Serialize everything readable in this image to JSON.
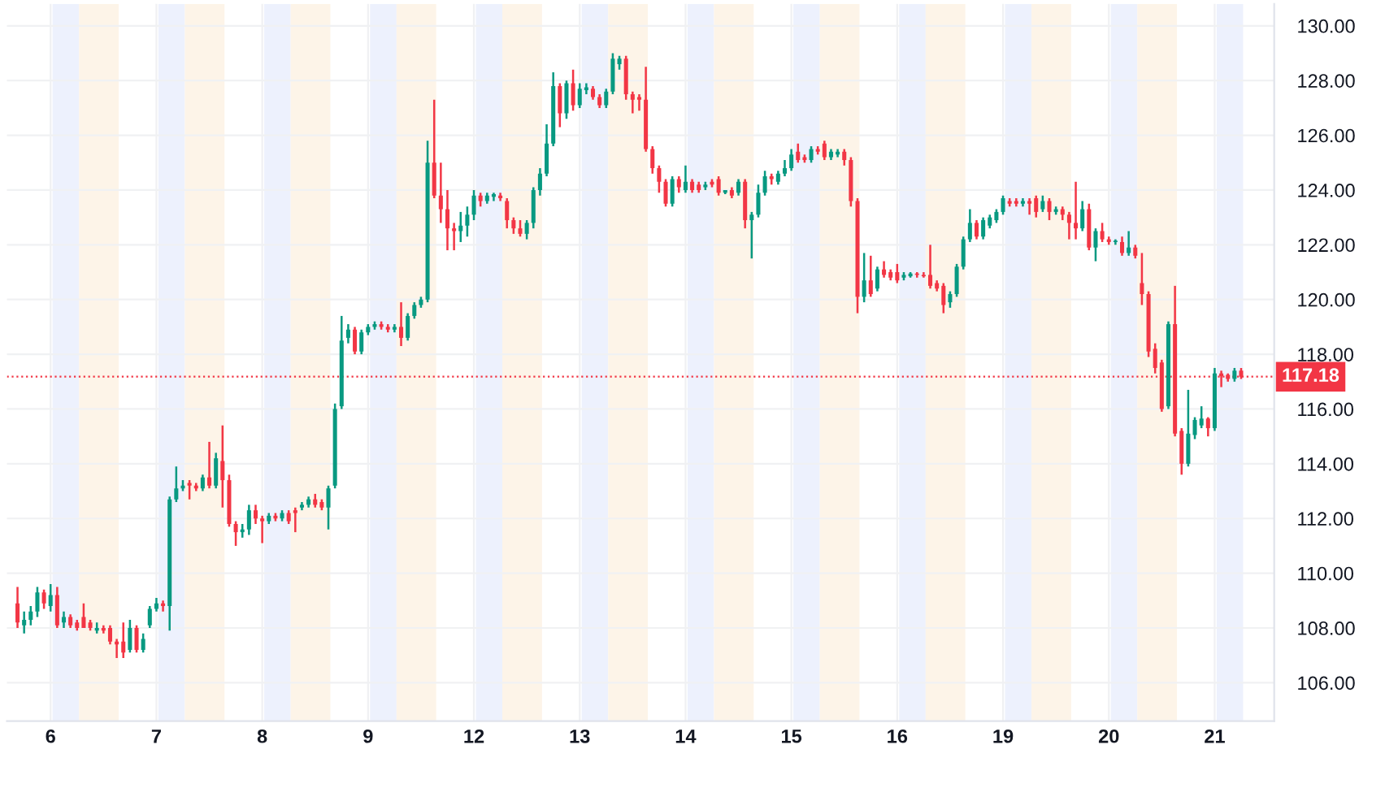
{
  "chart_data": {
    "type": "candlestick",
    "categories": [
      null,
      null,
      null,
      null,
      null,
      "6",
      null,
      null,
      null,
      null,
      null,
      null,
      null,
      null,
      null,
      null,
      null,
      null,
      null,
      null,
      null,
      "7",
      null,
      null,
      null,
      null,
      null,
      null,
      null,
      null,
      null,
      null,
      null,
      null,
      null,
      null,
      null,
      "8",
      null,
      null,
      null,
      null,
      null,
      null,
      null,
      null,
      null,
      null,
      null,
      null,
      null,
      null,
      null,
      "9",
      null,
      null,
      null,
      null,
      null,
      null,
      null,
      null,
      null,
      null,
      null,
      null,
      null,
      null,
      null,
      "12",
      null,
      null,
      null,
      null,
      null,
      null,
      null,
      null,
      null,
      null,
      null,
      null,
      null,
      null,
      null,
      "13",
      null,
      null,
      null,
      null,
      null,
      null,
      null,
      null,
      null,
      null,
      null,
      null,
      null,
      null,
      null,
      "14",
      null,
      null,
      null,
      null,
      null,
      null,
      null,
      null,
      null,
      null,
      null,
      null,
      null,
      null,
      null,
      "15",
      null,
      null,
      null,
      null,
      null,
      null,
      null,
      null,
      null,
      null,
      null,
      null,
      null,
      null,
      null,
      "16",
      null,
      null,
      null,
      null,
      null,
      null,
      null,
      null,
      null,
      null,
      null,
      null,
      null,
      null,
      null,
      "19",
      null,
      null,
      null,
      null,
      null,
      null,
      null,
      null,
      null,
      null,
      null,
      null,
      null,
      null,
      null,
      "20",
      null,
      null,
      null,
      null,
      null,
      null,
      null,
      null,
      null,
      null,
      null,
      null,
      null,
      null,
      null,
      "21",
      null,
      null,
      null,
      null
    ],
    "ohlc": [
      [
        108.9,
        109.5,
        108.0,
        108.2
      ],
      [
        108.1,
        108.6,
        107.8,
        108.3
      ],
      [
        108.3,
        108.8,
        108.1,
        108.6
      ],
      [
        108.6,
        109.5,
        108.4,
        109.3
      ],
      [
        109.3,
        109.4,
        108.7,
        108.9
      ],
      [
        108.8,
        109.6,
        108.6,
        109.2
      ],
      [
        109.2,
        109.5,
        108.0,
        108.1
      ],
      [
        108.2,
        108.6,
        108.0,
        108.4
      ],
      [
        108.4,
        108.5,
        108.0,
        108.1
      ],
      [
        108.2,
        108.3,
        107.9,
        108.0
      ],
      [
        108.4,
        108.9,
        108.0,
        108.0
      ],
      [
        108.2,
        108.3,
        107.9,
        108.0
      ],
      [
        107.9,
        108.2,
        107.8,
        108.0
      ],
      [
        108.0,
        108.1,
        107.8,
        107.9
      ],
      [
        108.0,
        108.1,
        107.4,
        107.5
      ],
      [
        107.5,
        107.6,
        106.9,
        107.4
      ],
      [
        107.5,
        108.2,
        106.9,
        107.1
      ],
      [
        107.2,
        108.3,
        107.1,
        108.0
      ],
      [
        108.0,
        108.1,
        107.1,
        107.2
      ],
      [
        107.2,
        107.8,
        107.1,
        107.6
      ],
      [
        108.1,
        108.8,
        108.0,
        108.7
      ],
      [
        108.7,
        109.1,
        108.6,
        108.9
      ],
      [
        108.9,
        109.0,
        108.6,
        108.8
      ],
      [
        108.8,
        112.8,
        107.9,
        112.7
      ],
      [
        112.7,
        113.9,
        112.6,
        113.1
      ],
      [
        113.1,
        113.4,
        113.0,
        113.2
      ],
      [
        113.3,
        113.4,
        112.7,
        113.2
      ],
      [
        113.2,
        113.3,
        113.0,
        113.1
      ],
      [
        113.1,
        113.6,
        113.0,
        113.5
      ],
      [
        113.5,
        114.8,
        113.1,
        113.2
      ],
      [
        113.2,
        114.4,
        113.1,
        114.2
      ],
      [
        114.1,
        115.4,
        112.4,
        113.4
      ],
      [
        113.4,
        113.6,
        111.7,
        111.8
      ],
      [
        111.8,
        111.9,
        111.0,
        111.5
      ],
      [
        111.5,
        111.8,
        111.3,
        111.6
      ],
      [
        111.6,
        112.5,
        111.4,
        112.3
      ],
      [
        112.3,
        112.5,
        111.8,
        112.0
      ],
      [
        112.0,
        112.1,
        111.1,
        111.9
      ],
      [
        111.9,
        112.2,
        111.8,
        112.1
      ],
      [
        112.1,
        112.2,
        111.9,
        112.0
      ],
      [
        112.0,
        112.3,
        111.9,
        112.2
      ],
      [
        112.2,
        112.3,
        111.8,
        111.9
      ],
      [
        112.3,
        112.4,
        111.5,
        112.2
      ],
      [
        112.4,
        112.6,
        112.3,
        112.5
      ],
      [
        112.5,
        112.8,
        112.4,
        112.7
      ],
      [
        112.7,
        112.9,
        112.4,
        112.5
      ],
      [
        112.6,
        112.7,
        112.3,
        112.4
      ],
      [
        112.4,
        113.2,
        111.6,
        113.1
      ],
      [
        113.2,
        116.2,
        113.1,
        116.0
      ],
      [
        116.1,
        119.4,
        116.0,
        118.5
      ],
      [
        118.6,
        119.1,
        118.4,
        118.9
      ],
      [
        118.9,
        119.0,
        118.0,
        118.1
      ],
      [
        118.1,
        118.9,
        118.0,
        118.8
      ],
      [
        118.8,
        119.1,
        118.7,
        119.0
      ],
      [
        119.0,
        119.2,
        118.9,
        119.1
      ],
      [
        119.1,
        119.2,
        118.9,
        119.0
      ],
      [
        119.0,
        119.1,
        118.8,
        118.9
      ],
      [
        118.9,
        119.1,
        118.8,
        119.0
      ],
      [
        119.0,
        119.9,
        118.3,
        118.6
      ],
      [
        118.6,
        119.5,
        118.5,
        119.4
      ],
      [
        119.4,
        119.9,
        119.3,
        119.8
      ],
      [
        119.8,
        120.1,
        119.7,
        120.0
      ],
      [
        120.0,
        125.8,
        119.9,
        125.0
      ],
      [
        125.0,
        127.3,
        123.7,
        123.8
      ],
      [
        123.8,
        125.0,
        122.8,
        123.3
      ],
      [
        123.3,
        124.0,
        121.8,
        122.6
      ],
      [
        122.6,
        122.8,
        121.8,
        122.5
      ],
      [
        122.5,
        123.2,
        122.1,
        122.7
      ],
      [
        122.7,
        123.4,
        122.3,
        123.1
      ],
      [
        123.1,
        124.0,
        122.9,
        123.8
      ],
      [
        123.8,
        123.9,
        123.4,
        123.6
      ],
      [
        123.6,
        123.9,
        123.5,
        123.8
      ],
      [
        123.75,
        123.9,
        123.6,
        123.85
      ],
      [
        123.8,
        123.9,
        123.6,
        123.7
      ],
      [
        123.6,
        123.7,
        122.6,
        122.9
      ],
      [
        122.9,
        123.0,
        122.4,
        122.6
      ],
      [
        122.6,
        122.9,
        122.3,
        122.4
      ],
      [
        122.4,
        122.9,
        122.2,
        122.8
      ],
      [
        122.8,
        124.1,
        122.6,
        124.0
      ],
      [
        124.0,
        124.8,
        123.8,
        124.6
      ],
      [
        124.6,
        126.4,
        124.5,
        125.7
      ],
      [
        125.7,
        128.3,
        125.6,
        127.8
      ],
      [
        127.8,
        127.9,
        126.3,
        126.8
      ],
      [
        126.8,
        128.0,
        126.6,
        127.9
      ],
      [
        127.9,
        128.4,
        126.9,
        127.1
      ],
      [
        127.1,
        127.9,
        127.0,
        127.7
      ],
      [
        127.65,
        127.9,
        127.5,
        127.75
      ],
      [
        127.7,
        127.8,
        127.3,
        127.4
      ],
      [
        127.4,
        127.5,
        127.0,
        127.1
      ],
      [
        127.1,
        127.7,
        127.0,
        127.6
      ],
      [
        127.6,
        129.0,
        127.5,
        128.8
      ],
      [
        128.6,
        128.9,
        128.4,
        128.8
      ],
      [
        128.8,
        128.9,
        127.3,
        127.5
      ],
      [
        127.5,
        127.6,
        126.8,
        127.3
      ],
      [
        127.4,
        127.5,
        126.9,
        127.3
      ],
      [
        127.3,
        128.5,
        125.4,
        125.5
      ],
      [
        125.5,
        125.6,
        124.6,
        124.8
      ],
      [
        124.8,
        124.9,
        123.9,
        124.3
      ],
      [
        124.3,
        124.4,
        123.4,
        123.5
      ],
      [
        123.5,
        124.5,
        123.4,
        124.4
      ],
      [
        124.4,
        124.5,
        123.9,
        124.1
      ],
      [
        124.0,
        124.9,
        123.9,
        124.3
      ],
      [
        124.3,
        124.4,
        123.9,
        124.0
      ],
      [
        124.2,
        124.3,
        123.9,
        124.0
      ],
      [
        124.1,
        124.3,
        124.0,
        124.2
      ],
      [
        124.3,
        124.4,
        124.1,
        124.2
      ],
      [
        124.4,
        124.5,
        123.8,
        123.9
      ],
      [
        123.9,
        124.0,
        123.85,
        124.0
      ],
      [
        124.0,
        124.1,
        123.7,
        123.8
      ],
      [
        123.9,
        124.4,
        123.8,
        124.3
      ],
      [
        124.3,
        124.4,
        122.6,
        122.9
      ],
      [
        122.9,
        123.2,
        121.5,
        123.1
      ],
      [
        123.1,
        124.2,
        123.0,
        123.9
      ],
      [
        123.9,
        124.7,
        123.8,
        124.5
      ],
      [
        124.5,
        124.6,
        124.2,
        124.4
      ],
      [
        124.3,
        124.7,
        124.2,
        124.6
      ],
      [
        124.6,
        125.1,
        124.5,
        124.8
      ],
      [
        124.8,
        125.5,
        124.7,
        125.3
      ],
      [
        125.4,
        125.7,
        125.0,
        125.1
      ],
      [
        125.2,
        125.3,
        125.0,
        125.1
      ],
      [
        125.1,
        125.6,
        125.0,
        125.5
      ],
      [
        125.5,
        125.6,
        125.3,
        125.4
      ],
      [
        125.7,
        125.8,
        125.1,
        125.2
      ],
      [
        125.2,
        125.5,
        125.1,
        125.4
      ],
      [
        125.3,
        125.5,
        125.2,
        125.4
      ],
      [
        125.4,
        125.5,
        124.9,
        125.1
      ],
      [
        125.1,
        125.2,
        123.4,
        123.6
      ],
      [
        123.6,
        123.7,
        119.5,
        120.1
      ],
      [
        120.1,
        121.7,
        119.9,
        120.7
      ],
      [
        120.7,
        121.6,
        120.1,
        120.2
      ],
      [
        120.4,
        121.2,
        120.3,
        121.1
      ],
      [
        121.1,
        121.4,
        120.8,
        120.9
      ],
      [
        121.0,
        121.1,
        120.7,
        120.8
      ],
      [
        121.0,
        121.3,
        120.6,
        120.7
      ],
      [
        120.8,
        121.0,
        120.7,
        120.9
      ],
      [
        120.85,
        121.0,
        120.8,
        120.95
      ],
      [
        120.95,
        121.0,
        120.8,
        120.9
      ],
      [
        120.9,
        121.0,
        120.8,
        120.85
      ],
      [
        120.9,
        122.0,
        120.4,
        120.5
      ],
      [
        120.6,
        120.7,
        120.3,
        120.4
      ],
      [
        120.5,
        120.6,
        119.5,
        119.8
      ],
      [
        119.9,
        120.3,
        119.7,
        120.2
      ],
      [
        120.2,
        121.3,
        120.1,
        121.2
      ],
      [
        121.2,
        122.3,
        121.1,
        122.2
      ],
      [
        122.2,
        123.3,
        122.1,
        122.8
      ],
      [
        122.8,
        122.9,
        122.2,
        122.3
      ],
      [
        122.3,
        123.0,
        122.2,
        122.9
      ],
      [
        122.7,
        123.1,
        122.6,
        123.0
      ],
      [
        122.9,
        123.3,
        122.8,
        123.2
      ],
      [
        123.2,
        123.8,
        123.1,
        123.7
      ],
      [
        123.6,
        123.7,
        123.4,
        123.5
      ],
      [
        123.6,
        123.7,
        123.4,
        123.5
      ],
      [
        123.5,
        123.7,
        123.4,
        123.6
      ],
      [
        123.6,
        123.7,
        123.1,
        123.5
      ],
      [
        123.7,
        123.8,
        123.0,
        123.2
      ],
      [
        123.3,
        123.8,
        123.2,
        123.6
      ],
      [
        123.6,
        123.7,
        122.9,
        123.2
      ],
      [
        123.2,
        123.4,
        123.1,
        123.3
      ],
      [
        123.3,
        123.4,
        122.9,
        123.1
      ],
      [
        123.1,
        123.2,
        122.2,
        122.8
      ],
      [
        122.8,
        124.3,
        122.2,
        122.6
      ],
      [
        122.6,
        123.6,
        122.5,
        123.3
      ],
      [
        123.3,
        123.5,
        121.8,
        121.9
      ],
      [
        121.9,
        122.6,
        121.4,
        122.5
      ],
      [
        122.5,
        122.8,
        122.1,
        122.2
      ],
      [
        122.2,
        122.3,
        122.0,
        122.1
      ],
      [
        122.1,
        122.2,
        122.0,
        122.15
      ],
      [
        122.1,
        122.3,
        121.6,
        121.7
      ],
      [
        121.7,
        122.5,
        121.6,
        121.9
      ],
      [
        121.9,
        122.0,
        121.5,
        121.6
      ],
      [
        120.6,
        121.7,
        119.8,
        120.2
      ],
      [
        120.2,
        120.3,
        117.9,
        118.1
      ],
      [
        118.2,
        118.4,
        117.3,
        117.5
      ],
      [
        117.7,
        117.8,
        115.9,
        116.0
      ],
      [
        116.1,
        119.2,
        116.0,
        119.1
      ],
      [
        119.1,
        120.5,
        115.0,
        115.1
      ],
      [
        115.2,
        115.3,
        113.6,
        114.0
      ],
      [
        114.0,
        116.7,
        113.9,
        115.1
      ],
      [
        115.05,
        115.7,
        114.9,
        115.6
      ],
      [
        115.4,
        116.1,
        115.3,
        115.65
      ],
      [
        115.65,
        115.7,
        115.0,
        115.3
      ],
      [
        115.3,
        117.5,
        115.2,
        117.3
      ],
      [
        117.3,
        117.4,
        116.8,
        117.2
      ],
      [
        117.25,
        117.3,
        117.0,
        117.1
      ],
      [
        117.1,
        117.5,
        117.0,
        117.4
      ],
      [
        117.4,
        117.5,
        117.1,
        117.18
      ]
    ],
    "ylim": [
      104.6,
      130.8
    ],
    "yticks": [
      {
        "value": 106,
        "label": "106.00"
      },
      {
        "value": 108,
        "label": "108.00"
      },
      {
        "value": 110,
        "label": "110.00"
      },
      {
        "value": 112,
        "label": "112.00"
      },
      {
        "value": 114,
        "label": "114.00"
      },
      {
        "value": 116,
        "label": "116.00"
      },
      {
        "value": 118,
        "label": "118.00"
      },
      {
        "value": 120,
        "label": "120.00"
      },
      {
        "value": 122,
        "label": "122.00"
      },
      {
        "value": 124,
        "label": "124.00"
      },
      {
        "value": 126,
        "label": "126.00"
      },
      {
        "value": 128,
        "label": "128.00"
      },
      {
        "value": 130,
        "label": "130.00"
      }
    ],
    "grid": true,
    "ref_lines": [
      {
        "axis": "y",
        "value": 117.18,
        "label": "117.18",
        "color": "#f23645",
        "line_style": "dotted"
      }
    ]
  }
}
